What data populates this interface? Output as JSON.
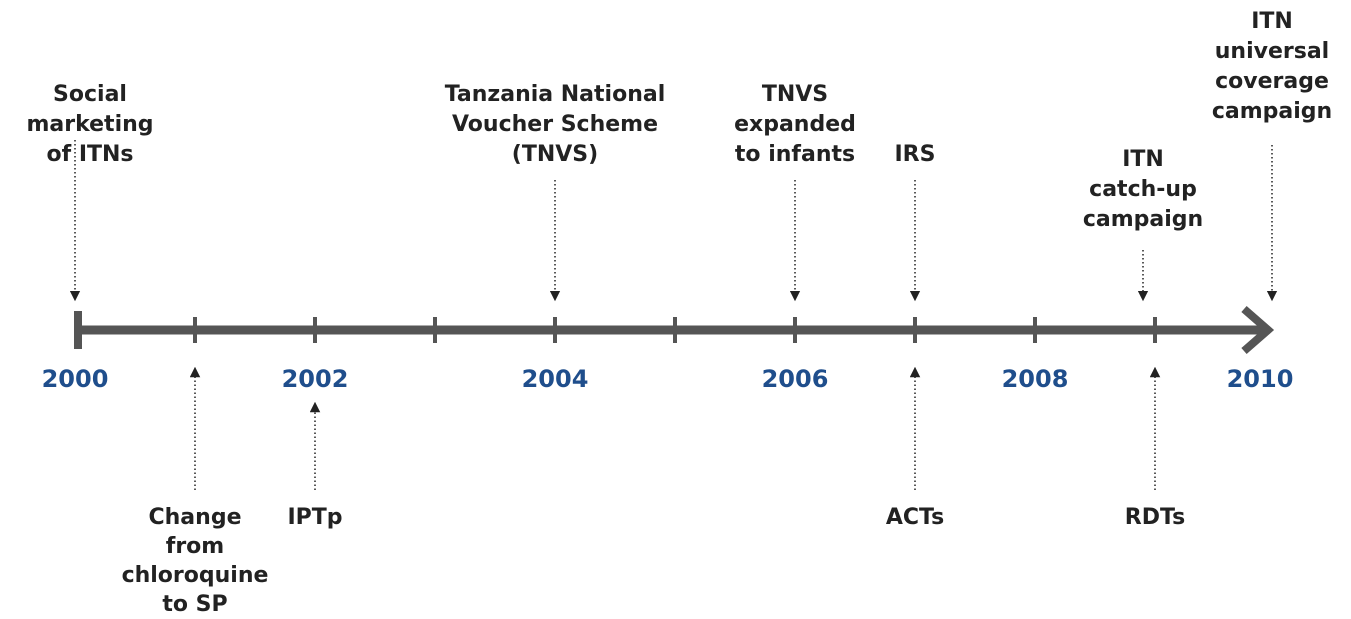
{
  "years": [
    "2000",
    "2002",
    "2004",
    "2006",
    "2008",
    "2010"
  ],
  "events_above": [
    {
      "lines": [
        "Social",
        "marketing",
        "of ITNs"
      ]
    },
    {
      "lines": [
        "Tanzania National",
        "Voucher Scheme",
        "(TNVS)"
      ]
    },
    {
      "lines": [
        "TNVS",
        "expanded",
        "to infants"
      ]
    },
    {
      "lines": [
        "IRS"
      ]
    },
    {
      "lines": [
        "ITN",
        "catch-up",
        "campaign"
      ]
    },
    {
      "lines": [
        "ITN",
        "universal",
        "coverage",
        "campaign"
      ]
    }
  ],
  "events_below": [
    {
      "lines": [
        "Change",
        "from",
        "chloroquine",
        "to SP"
      ]
    },
    {
      "lines": [
        "IPTp"
      ]
    },
    {
      "lines": [
        "ACTs"
      ]
    },
    {
      "lines": [
        "RDTs"
      ]
    }
  ]
}
